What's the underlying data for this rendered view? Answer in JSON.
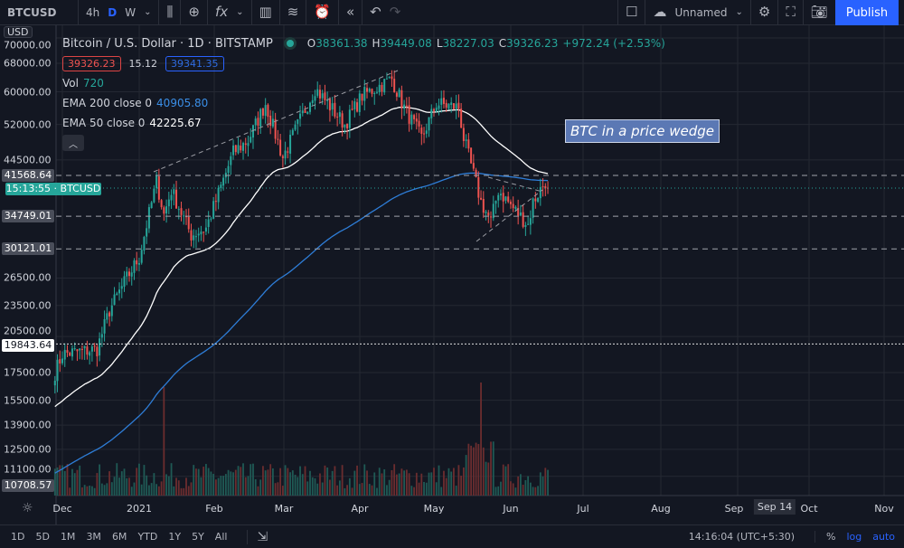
{
  "toolbar": {
    "symbol": "BTCUSD",
    "intervals": [
      "4h",
      "D",
      "W"
    ],
    "active_interval": "D",
    "layout_name": "Unnamed",
    "publish": "Publish",
    "icons": [
      "candles-icon",
      "plus-circle-icon",
      "indicators-icon",
      "bar-chart-icon",
      "templates-icon",
      "alert-icon",
      "replay-icon",
      "undo-icon",
      "redo-icon",
      "square-icon",
      "cloud-icon",
      "gear-icon",
      "fullscreen-icon",
      "camera-icon"
    ]
  },
  "legend": {
    "title": "Bitcoin / U.S. Dollar · 1D · BITSTAMP",
    "o_label": "O",
    "o": "38361.38",
    "h_label": "H",
    "h": "39449.08",
    "l_label": "L",
    "l": "38227.03",
    "c_label": "C",
    "c": "39326.23",
    "change": "+972.24 (+2.53%)",
    "bid": "39326.23",
    "spread": "15.12",
    "ask": "39341.35",
    "vol_label": "Vol",
    "vol": "720",
    "ema200_label": "EMA 200 close 0",
    "ema200": "40905.80",
    "ema50_label": "EMA 50 close 0",
    "ema50": "42225.67"
  },
  "price_axis": {
    "currency": "USD",
    "ticks": [
      "70000.00",
      "68000.00",
      "60000.00",
      "52000.00",
      "44500.00",
      "26500.00",
      "23500.00",
      "20500.00",
      "17500.00",
      "15500.00",
      "13900.00",
      "12500.00",
      "11100.00"
    ],
    "levels": [
      "41568.64",
      "34749.01",
      "30121.01"
    ],
    "crosshair_price": "19843.64",
    "bottom_price": "10708.57",
    "countdown": "15:13:55",
    "countdown_symbol": "BTCUSD"
  },
  "time_axis": {
    "labels": [
      "Dec",
      "2021",
      "Feb",
      "Mar",
      "Apr",
      "May",
      "Jun",
      "Jul",
      "Aug",
      "Sep",
      "Oct",
      "Nov"
    ],
    "crosshair_date": "Sep 14"
  },
  "annotation": "BTC in a price wedge",
  "bottom": {
    "ranges": [
      "1D",
      "5D",
      "1M",
      "3M",
      "6M",
      "YTD",
      "1Y",
      "5Y",
      "All"
    ],
    "time": "14:16:04 (UTC+5:30)",
    "percent": "%",
    "log": "log",
    "auto": "auto"
  },
  "colors": {
    "up": "#26a69a",
    "down": "#ef5350",
    "ema200": "#2e7dd7",
    "ema50": "#ffffff",
    "accent": "#2962ff",
    "annotation": "#5b78b4"
  },
  "chart_data": {
    "type": "candlestick",
    "scale": "log",
    "close_path": [
      [
        "2020-11-28",
        17500
      ],
      [
        "2020-12-01",
        19000
      ],
      [
        "2020-12-15",
        19400
      ],
      [
        "2020-12-20",
        23000
      ],
      [
        "2020-12-27",
        26500
      ],
      [
        "2021-01-01",
        29000
      ],
      [
        "2021-01-08",
        40500
      ],
      [
        "2021-01-11",
        35000
      ],
      [
        "2021-01-14",
        39000
      ],
      [
        "2021-01-22",
        32000
      ],
      [
        "2021-01-28",
        33000
      ],
      [
        "2021-02-08",
        46000
      ],
      [
        "2021-02-14",
        48500
      ],
      [
        "2021-02-21",
        57000
      ],
      [
        "2021-02-28",
        45000
      ],
      [
        "2021-03-13",
        61000
      ],
      [
        "2021-03-25",
        52000
      ],
      [
        "2021-04-01",
        59000
      ],
      [
        "2021-04-13",
        63500
      ],
      [
        "2021-04-18",
        56000
      ],
      [
        "2021-04-25",
        49000
      ],
      [
        "2021-05-01",
        57000
      ],
      [
        "2021-05-10",
        56000
      ],
      [
        "2021-05-12",
        49000
      ],
      [
        "2021-05-19",
        37000
      ],
      [
        "2021-05-23",
        34000
      ],
      [
        "2021-05-26",
        39000
      ],
      [
        "2021-06-01",
        36000
      ],
      [
        "2021-06-07",
        33500
      ],
      [
        "2021-06-09",
        37000
      ],
      [
        "2021-06-14",
        40500
      ],
      [
        "2021-06-15",
        39326.23
      ]
    ]
  }
}
